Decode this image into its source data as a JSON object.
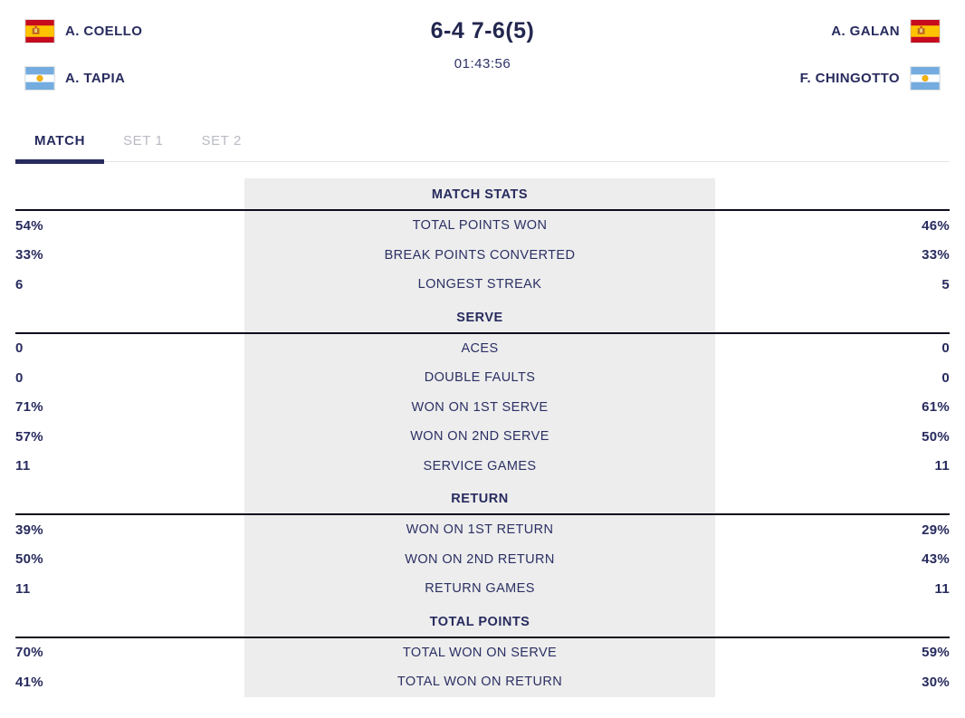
{
  "header": {
    "team_left": {
      "players": [
        {
          "name": "A. COELLO",
          "flag": "spain"
        },
        {
          "name": "A. TAPIA",
          "flag": "argentina"
        }
      ]
    },
    "team_right": {
      "players": [
        {
          "name": "A. GALAN",
          "flag": "spain"
        },
        {
          "name": "F. CHINGOTTO",
          "flag": "argentina"
        }
      ]
    },
    "score": "6-4 7-6(5)",
    "duration": "01:43:56"
  },
  "tabs": [
    {
      "label": "MATCH",
      "active": true
    },
    {
      "label": "SET 1",
      "active": false
    },
    {
      "label": "SET 2",
      "active": false
    }
  ],
  "stats_sections": [
    {
      "title": "MATCH STATS",
      "rows": [
        {
          "label": "TOTAL POINTS WON",
          "left": "54%",
          "right": "46%"
        },
        {
          "label": "BREAK POINTS CONVERTED",
          "left": "33%",
          "right": "33%"
        },
        {
          "label": "LONGEST STREAK",
          "left": "6",
          "right": "5"
        }
      ]
    },
    {
      "title": "SERVE",
      "rows": [
        {
          "label": "ACES",
          "left": "0",
          "right": "0"
        },
        {
          "label": "DOUBLE FAULTS",
          "left": "0",
          "right": "0"
        },
        {
          "label": "WON ON 1ST SERVE",
          "left": "71%",
          "right": "61%"
        },
        {
          "label": "WON ON 2ND SERVE",
          "left": "57%",
          "right": "50%"
        },
        {
          "label": "SERVICE GAMES",
          "left": "11",
          "right": "11"
        }
      ]
    },
    {
      "title": "RETURN",
      "rows": [
        {
          "label": "WON ON 1ST RETURN",
          "left": "39%",
          "right": "29%"
        },
        {
          "label": "WON ON 2ND RETURN",
          "left": "50%",
          "right": "43%"
        },
        {
          "label": "RETURN GAMES",
          "left": "11",
          "right": "11"
        }
      ]
    },
    {
      "title": "TOTAL POINTS",
      "rows": [
        {
          "label": "TOTAL WON ON SERVE",
          "left": "70%",
          "right": "59%"
        },
        {
          "label": "TOTAL WON ON RETURN",
          "left": "41%",
          "right": "30%"
        }
      ]
    }
  ],
  "colors": {
    "navy_text": "#272b5e",
    "inactive_tab": "#b9bac4",
    "panel_gray": "#ededed",
    "section_divider": "#0c0c1e",
    "tab_track_line": "#e4e4e8",
    "spain_red": "#c60b1e",
    "spain_yellow": "#ffc400",
    "argentina_blue": "#74acdf",
    "argentina_sun": "#f6b40e"
  }
}
